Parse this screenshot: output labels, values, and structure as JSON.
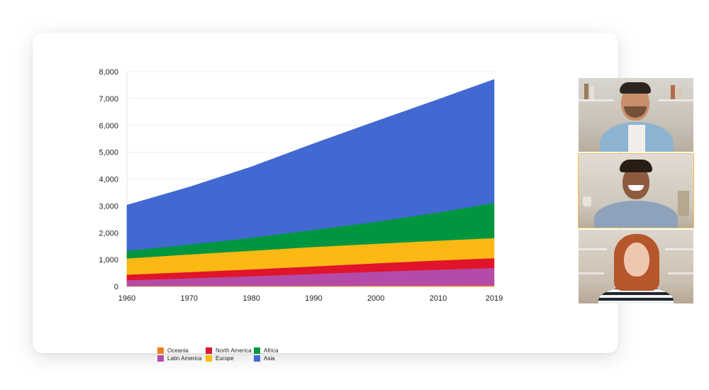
{
  "chart_data": {
    "type": "area",
    "stacked": true,
    "x": [
      1960,
      1970,
      1980,
      1990,
      2000,
      2010,
      2019
    ],
    "xticks": [
      "1960",
      "1970",
      "1980",
      "1990",
      "2000",
      "2010",
      "2019"
    ],
    "yticks": [
      "0",
      "1,000",
      "2,000",
      "3,000",
      "4,000",
      "5,000",
      "6,000",
      "7,000",
      "8,000"
    ],
    "ylim": [
      0,
      8000
    ],
    "grid": "horizontal",
    "legend_position": "bottom-left",
    "series": [
      {
        "name": "Oceania",
        "color": "#f07f1a",
        "values": [
          16,
          20,
          23,
          27,
          31,
          37,
          42
        ]
      },
      {
        "name": "Latin America",
        "color": "#b44ba8",
        "values": [
          220,
          287,
          362,
          443,
          522,
          591,
          648
        ]
      },
      {
        "name": "North America",
        "color": "#e0142b",
        "values": [
          205,
          231,
          254,
          280,
          313,
          343,
          367
        ]
      },
      {
        "name": "Europe",
        "color": "#fdb913",
        "values": [
          605,
          657,
          694,
          722,
          726,
          736,
          747
        ]
      },
      {
        "name": "Africa",
        "color": "#00963f",
        "values": [
          285,
          366,
          483,
          638,
          818,
          1049,
          1308
        ]
      },
      {
        "name": "Asia",
        "color": "#4169d1",
        "values": [
          1700,
          2140,
          2640,
          3210,
          3740,
          4210,
          4600
        ]
      }
    ],
    "legend_order": [
      "Oceania",
      "Latin America",
      "North America",
      "Europe",
      "Africa",
      "Asia"
    ]
  },
  "video_call": {
    "participants": [
      {
        "id": "participant-1",
        "active": false
      },
      {
        "id": "participant-2",
        "active": true
      },
      {
        "id": "participant-3",
        "active": false
      }
    ]
  }
}
